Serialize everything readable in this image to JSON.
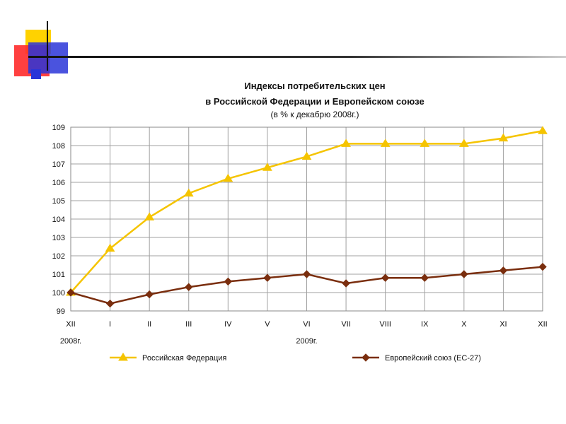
{
  "chart_data": {
    "type": "line",
    "title_lines": [
      "Индексы потребительских цен",
      "в Российской Федерации и Европейском союзе"
    ],
    "subtitle": "(в % к декабрю 2008г.)",
    "categories": [
      "XII",
      "I",
      "II",
      "III",
      "IV",
      "V",
      "VI",
      "VII",
      "VIII",
      "IX",
      "X",
      "XI",
      "XII"
    ],
    "year_labels": [
      {
        "text": "2008г.",
        "category_index": 0
      },
      {
        "text": "2009г.",
        "category_index": 6
      }
    ],
    "ylim": [
      99,
      109
    ],
    "yticks": [
      99,
      100,
      101,
      102,
      103,
      104,
      105,
      106,
      107,
      108,
      109
    ],
    "grid": true,
    "legend_position": "bottom",
    "series": [
      {
        "name": "Российская Федерация",
        "color": "#f5c400",
        "marker": "triangle",
        "values": [
          100.0,
          102.4,
          104.1,
          105.4,
          106.2,
          106.8,
          107.4,
          108.1,
          108.1,
          108.1,
          108.1,
          108.4,
          108.8
        ]
      },
      {
        "name": "Европейский союз (ЕС-27)",
        "color": "#7a2e0e",
        "marker": "diamond",
        "values": [
          100.0,
          99.4,
          99.9,
          100.3,
          100.6,
          100.8,
          101.0,
          100.5,
          100.8,
          100.8,
          101.0,
          101.2,
          101.4
        ]
      }
    ]
  }
}
